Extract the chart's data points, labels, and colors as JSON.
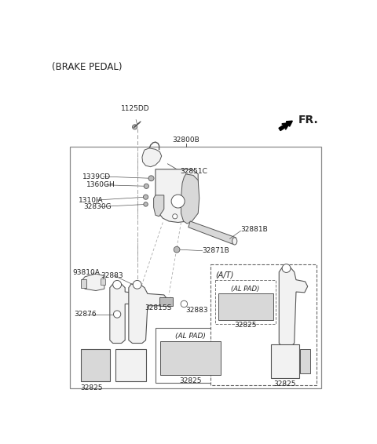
{
  "bg_color": "#ffffff",
  "text_color": "#222222",
  "fig_width": 4.8,
  "fig_height": 5.66,
  "dpi": 100,
  "labels": {
    "brake_pedal": "(BRAKE PEDAL)",
    "fr": "FR.",
    "p32800B": "32800B",
    "p1125DD": "1125DD",
    "p1339CD": "1339CD",
    "p1360GH": "1360GH",
    "p32851C": "32851C",
    "p1310JA": "1310JA",
    "p32830G": "32830G",
    "p32881B": "32881B",
    "p32871B": "32871B",
    "p93810A": "93810A",
    "p32883a": "32883",
    "p32876": "32876",
    "p32815S": "32815S",
    "p32883b": "32883",
    "p32825a": "32825",
    "p_alpad_a": "(AL PAD)",
    "p32825b": "32825",
    "p_at": "(A/T)",
    "p_alpad_b": "(AL PAD)",
    "p32825c": "32825",
    "p32825d": "32825"
  },
  "colors": {
    "line": "#555555",
    "fill_light": "#f2f2f2",
    "fill_mid": "#d8d8d8",
    "fill_dark": "#bbbbbb",
    "fill_black": "#333333",
    "dashed_box": "#777777"
  }
}
